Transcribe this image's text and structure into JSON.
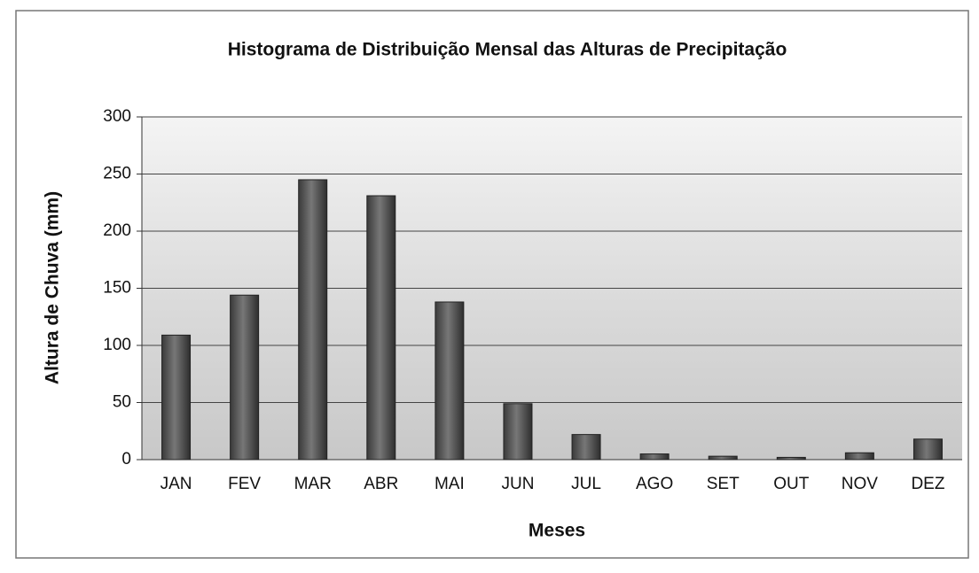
{
  "chart_data": {
    "type": "bar",
    "title": "Histograma de Distribuição Mensal das Alturas de Precipitação",
    "x_label": "Meses",
    "y_label": "Altura de Chuva (mm)",
    "categories": [
      "JAN",
      "FEV",
      "MAR",
      "ABR",
      "MAI",
      "JUN",
      "JUL",
      "AGO",
      "SET",
      "OUT",
      "NOV",
      "DEZ"
    ],
    "values": [
      109,
      144,
      245,
      231,
      138,
      49,
      22,
      5,
      3,
      2,
      6,
      18
    ],
    "color": "#5a5a5a",
    "ylim": [
      0,
      300
    ],
    "yticks": [
      0,
      50,
      100,
      150,
      200,
      250,
      300
    ],
    "grid": true
  }
}
